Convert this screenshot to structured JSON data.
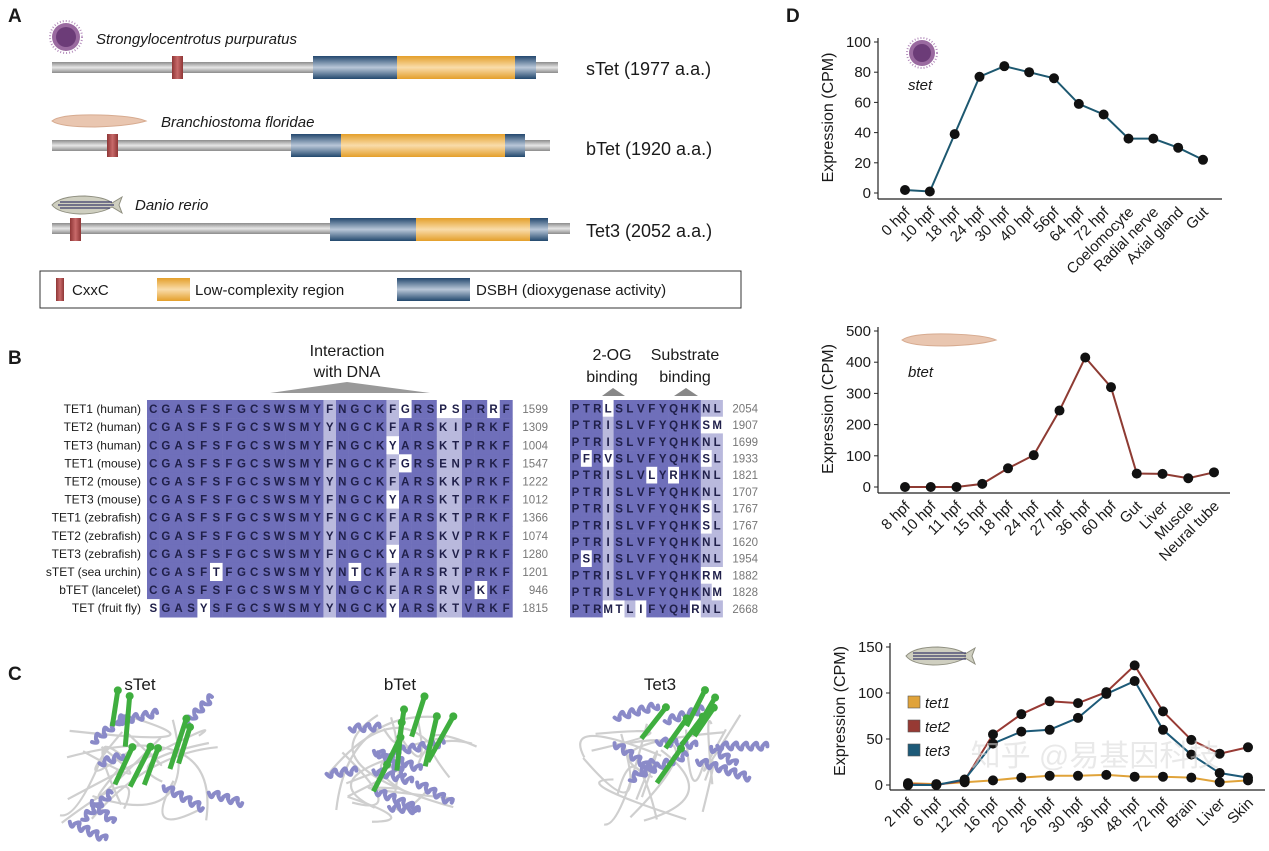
{
  "colors": {
    "backbone": "#a9a9a9",
    "cxxc": "#a84545",
    "low_complexity": "#e8a93a",
    "dsbh": "#2f5880",
    "align_dark": "#6f6fba",
    "align_light": "#b9b9dd",
    "stet_line": "#1d5870",
    "btet_line": "#8e3b33",
    "tet1": "#e0a33a",
    "tet2": "#973a34",
    "tet3": "#1d5a78",
    "helix": "#8a8ac8",
    "strand": "#3fae3f"
  },
  "panel_a": {
    "letter": "A",
    "proteins": [
      {
        "species": "Strongylocentrotus purpuratus",
        "label": "sTet (1977 a.a.)",
        "icon": "sea-urchin"
      },
      {
        "species": "Branchiostoma floridae",
        "label": "bTet (1920 a.a.)",
        "icon": "lancelet"
      },
      {
        "species": "Danio rerio",
        "label": "Tet3 (2052 a.a.)",
        "icon": "zebrafish"
      }
    ],
    "legend": [
      "CxxC",
      "Low-complexity region",
      "DSBH (dioxygenase activity)"
    ]
  },
  "panel_b": {
    "letter": "B",
    "annotations": {
      "dna_line1": "Interaction",
      "dna_line2": "with DNA",
      "og_line1": "2-OG",
      "og_line2": "binding",
      "sub_line1": "Substrate",
      "sub_line2": "binding"
    },
    "left_block": [
      {
        "label": "TET1 (human)",
        "seq": "CGASFSFGCSWSMYFNGCKFGRSPSPRRF",
        "end": "1599",
        "shade": "ddddddddddddddlddddlwddwwddwd"
      },
      {
        "label": "TET2 (human)",
        "seq": "CGASFSFGCSWSMYYNGCKFARSKIPRKF",
        "end": "1309",
        "shade": "ddddddddddddddlddddldddlldddd"
      },
      {
        "label": "TET3 (human)",
        "seq": "CGASFSFGCSWSMYFNGCKYARSKTPRKF",
        "end": "1004",
        "shade": "ddddddddddddddlddddwdddlldddd"
      },
      {
        "label": "TET1 (mouse)",
        "seq": "CGASFSFGCSWSMYFNGCKFGRSENPRKF",
        "end": "1547",
        "shade": "ddddddddddddddlddddlwddlldddd"
      },
      {
        "label": "TET2 (mouse)",
        "seq": "CGASFSFGCSWSMYYNGCKFARSKKPRKF",
        "end": "1222",
        "shade": "ddddddddddddddlddddldddlldddd"
      },
      {
        "label": "TET3 (mouse)",
        "seq": "CGASFSFGCSWSMYFNGCKYARSKTPRKF",
        "end": "1012",
        "shade": "ddddddddddddddlddddwdddlldddd"
      },
      {
        "label": "TET1 (zebrafish)",
        "seq": "CGASFSFGCSWSMYFNGCKFARSKTPRKF",
        "end": "1366",
        "shade": "ddddddddddddddlddddldddlldddd"
      },
      {
        "label": "TET2 (zebrafish)",
        "seq": "CGASFSFGCSWSMYYNGCKFARSKVPRKF",
        "end": "1074",
        "shade": "ddddddddddddddlddddldddlldddd"
      },
      {
        "label": "TET3 (zebrafish)",
        "seq": "CGASFSFGCSWSMYFNGCKYARSKVPRKF",
        "end": "1280",
        "shade": "ddddddddddddddlddddwdddlldddd"
      },
      {
        "label": "sTET (sea urchin)",
        "seq": "CGASFTFGCSWSMYYNTCKFARSRTPRKF",
        "end": "1201",
        "shade": "dddddwddddddddldwddldddlldddd"
      },
      {
        "label": "bTET (lancelet)",
        "seq": "CGASFSFGCSWSMYYNGCKFARSRVPKKF",
        "end": "946",
        "shade": "ddddddddddddddlddddldddlldwdd"
      },
      {
        "label": "TET (fruit fly)",
        "seq": "SGASYSFGCSWSMYYNGCKYARSKTVRKF",
        "end": "1815",
        "shade": "wdddwdddddddddlddddwdddllddd"
      }
    ],
    "right_block": [
      {
        "seq": "PTRLSLVFYQHKNL",
        "end": "2054",
        "shade": "dddwddddddddll"
      },
      {
        "seq": "PTRISLVFYQHKSM",
        "end": "1907",
        "shade": "dddlddddddddww"
      },
      {
        "seq": "PTRISLVFYQHKNL",
        "end": "1699",
        "shade": "dddlddddddddll"
      },
      {
        "seq": "PFRVSLVFYQHKSL",
        "end": "1933",
        "shade": "dwdwddddddddwl"
      },
      {
        "seq": "PTRISLVLYRHKNL",
        "end": "1821",
        "shade": "dddldddwdwddll"
      },
      {
        "seq": "PTRISLVFYQHKNL",
        "end": "1707",
        "shade": "dddlddddddddll"
      },
      {
        "seq": "PTRISLVFYQHKSL",
        "end": "1767",
        "shade": "dddlddddddddwl"
      },
      {
        "seq": "PTRISLVFYQHKSL",
        "end": "1767",
        "shade": "dddlddddddddwl"
      },
      {
        "seq": "PTRISLVFYQHKNL",
        "end": "1620",
        "shade": "dddlddddddddll"
      },
      {
        "seq": "PSRISLVFYQHKNL",
        "end": "1954",
        "shade": "dwdlddddddddll"
      },
      {
        "seq": "PTRISLVFYQHKRM",
        "end": "1882",
        "shade": "dddlddddddddww"
      },
      {
        "seq": "PTRISLVFYQHKNM",
        "end": "1828",
        "shade": "dddlddddddddlw"
      },
      {
        "seq": "PTRMTLIFYQHRNL",
        "end": "2668",
        "shade": "dddwwlwddddwll"
      }
    ]
  },
  "panel_c": {
    "letter": "C",
    "titles": [
      "sTet",
      "bTet",
      "Tet3"
    ]
  },
  "panel_d": {
    "letter": "D"
  },
  "watermark": "知乎 @易基因科技",
  "chart_data": [
    {
      "type": "line",
      "title": "",
      "annotation": "stet",
      "icon": "sea-urchin",
      "ylabel": "Expression (CPM)",
      "xlabel": "",
      "ylim": [
        0,
        100
      ],
      "yticks": [
        0,
        20,
        40,
        60,
        80,
        100
      ],
      "categories": [
        "0 hpf",
        "10 hpf",
        "18 hpf",
        "24 hpf",
        "30 hpf",
        "40 hpf",
        "56pf",
        "64 hpf",
        "72 hpf",
        "Coelomocyte",
        "Radial nerve",
        "Axial gland",
        "Gut"
      ],
      "series": [
        {
          "values": [
            2,
            1,
            39,
            77,
            84,
            80,
            76,
            59,
            52,
            36,
            36,
            30,
            22
          ],
          "color": "#1d5870"
        }
      ],
      "grid": false
    },
    {
      "type": "line",
      "title": "",
      "annotation": "btet",
      "icon": "lancelet",
      "ylabel": "Expression (CPM)",
      "xlabel": "",
      "ylim": [
        0,
        500
      ],
      "yticks": [
        0,
        100,
        200,
        300,
        400,
        500
      ],
      "categories": [
        "8 hpf",
        "10 hpf",
        "11 hpf",
        "15 hpf",
        "18 hpf",
        "24 hpf",
        "27 hpf",
        "36 hpf",
        "60 hpf",
        "Gut",
        "Liver",
        "Muscle",
        "Neural tube"
      ],
      "series": [
        {
          "values": [
            0,
            0,
            0,
            10,
            60,
            102,
            245,
            415,
            320,
            43,
            42,
            28,
            47
          ],
          "color": "#8e3b33"
        }
      ],
      "grid": false
    },
    {
      "type": "line",
      "title": "",
      "icon": "zebrafish",
      "ylabel": "Expression (CPM)",
      "xlabel": "",
      "ylim": [
        0,
        150
      ],
      "yticks": [
        0,
        50,
        100,
        150
      ],
      "categories": [
        "2 hpf",
        "6 hpf",
        "12 hpf",
        "16 hpf",
        "20 hpf",
        "26 hpf",
        "30 hpf",
        "36 hpf",
        "48 hpf",
        "72 hpf",
        "Brain",
        "Liver",
        "Skin"
      ],
      "series": [
        {
          "name": "tet1",
          "values": [
            2,
            1,
            3,
            5,
            8,
            10,
            10,
            11,
            9,
            9,
            8,
            3,
            5
          ],
          "color": "#e0a33a"
        },
        {
          "name": "tet2",
          "values": [
            1,
            0,
            5,
            55,
            77,
            91,
            89,
            101,
            130,
            80,
            49,
            34,
            41
          ],
          "color": "#973a34"
        },
        {
          "name": "tet3",
          "values": [
            0,
            0,
            6,
            45,
            58,
            60,
            73,
            99,
            113,
            60,
            33,
            13,
            8
          ],
          "color": "#1d5a78"
        }
      ],
      "legend": "left",
      "grid": false
    }
  ]
}
